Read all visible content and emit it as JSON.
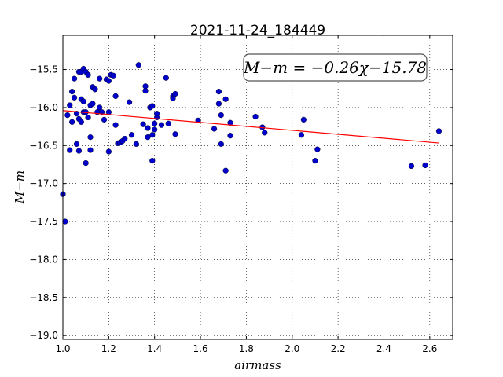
{
  "chart_data": {
    "type": "scatter",
    "title": "2021-11-24_184449",
    "xlabel": "airmass",
    "ylabel": "M−m",
    "xlim": [
      1.0,
      2.7
    ],
    "ylim": [
      -19.05,
      -15.05
    ],
    "y_inverted": true,
    "grid": true,
    "x_ticks": [
      1.0,
      1.2,
      1.4,
      1.6,
      1.8,
      2.0,
      2.2,
      2.4,
      2.6
    ],
    "x_tick_labels": [
      "1.0",
      "1.2",
      "1.4",
      "1.6",
      "1.8",
      "2.0",
      "2.2",
      "2.4",
      "2.6"
    ],
    "y_ticks": [
      -15.5,
      -16.0,
      -16.5,
      -17.0,
      -17.5,
      -18.0,
      -18.5,
      -19.0
    ],
    "y_tick_labels": [
      "−15.5",
      "−16.0",
      "−16.5",
      "−17.0",
      "−17.5",
      "−18.0",
      "−18.5",
      "−19.0"
    ],
    "annotation": "M−m = −0.26χ−15.78",
    "fit": {
      "slope": -0.26,
      "intercept": -15.78,
      "x_range": [
        1.0,
        2.64
      ],
      "color": "#ff0000"
    },
    "marker_color": "#0000cc",
    "series": [
      {
        "points": [
          [
            1.0,
            -17.14
          ],
          [
            1.01,
            -17.5
          ],
          [
            1.02,
            -16.1
          ],
          [
            1.03,
            -16.56
          ],
          [
            1.03,
            -15.97
          ],
          [
            1.04,
            -15.79
          ],
          [
            1.04,
            -16.19
          ],
          [
            1.05,
            -15.87
          ],
          [
            1.05,
            -15.62
          ],
          [
            1.06,
            -16.48
          ],
          [
            1.06,
            -16.08
          ],
          [
            1.07,
            -16.57
          ],
          [
            1.07,
            -16.15
          ],
          [
            1.07,
            -15.53
          ],
          [
            1.08,
            -16.19
          ],
          [
            1.08,
            -15.89
          ],
          [
            1.08,
            -15.53
          ],
          [
            1.09,
            -15.92
          ],
          [
            1.09,
            -16.06
          ],
          [
            1.09,
            -15.49
          ],
          [
            1.1,
            -15.53
          ],
          [
            1.1,
            -16.06
          ],
          [
            1.1,
            -16.73
          ],
          [
            1.11,
            -15.57
          ],
          [
            1.11,
            -16.13
          ],
          [
            1.12,
            -15.97
          ],
          [
            1.12,
            -16.39
          ],
          [
            1.12,
            -16.56
          ],
          [
            1.13,
            -15.95
          ],
          [
            1.13,
            -15.73
          ],
          [
            1.14,
            -15.76
          ],
          [
            1.14,
            -15.76
          ],
          [
            1.15,
            -16.06
          ],
          [
            1.16,
            -16.0
          ],
          [
            1.16,
            -15.62
          ],
          [
            1.17,
            -16.06
          ],
          [
            1.18,
            -16.16
          ],
          [
            1.19,
            -15.63
          ],
          [
            1.2,
            -15.65
          ],
          [
            1.2,
            -16.06
          ],
          [
            1.2,
            -16.58
          ],
          [
            1.21,
            -15.57
          ],
          [
            1.22,
            -15.58
          ],
          [
            1.23,
            -15.85
          ],
          [
            1.23,
            -16.23
          ],
          [
            1.24,
            -16.47
          ],
          [
            1.25,
            -16.46
          ],
          [
            1.26,
            -16.44
          ],
          [
            1.27,
            -16.41
          ],
          [
            1.29,
            -15.93
          ],
          [
            1.3,
            -16.36
          ],
          [
            1.32,
            -16.48
          ],
          [
            1.33,
            -15.44
          ],
          [
            1.35,
            -16.22
          ],
          [
            1.36,
            -15.72
          ],
          [
            1.36,
            -15.78
          ],
          [
            1.37,
            -16.39
          ],
          [
            1.37,
            -16.27
          ],
          [
            1.38,
            -16.0
          ],
          [
            1.39,
            -16.36
          ],
          [
            1.39,
            -15.98
          ],
          [
            1.39,
            -16.7
          ],
          [
            1.4,
            -16.21
          ],
          [
            1.4,
            -16.29
          ],
          [
            1.41,
            -16.13
          ],
          [
            1.41,
            -16.08
          ],
          [
            1.43,
            -16.23
          ],
          [
            1.45,
            -15.61
          ],
          [
            1.46,
            -16.21
          ],
          [
            1.48,
            -15.85
          ],
          [
            1.48,
            -15.88
          ],
          [
            1.49,
            -15.82
          ],
          [
            1.49,
            -16.35
          ],
          [
            1.59,
            -16.17
          ],
          [
            1.66,
            -16.28
          ],
          [
            1.68,
            -15.95
          ],
          [
            1.68,
            -15.79
          ],
          [
            1.69,
            -16.1
          ],
          [
            1.69,
            -16.48
          ],
          [
            1.71,
            -16.83
          ],
          [
            1.71,
            -15.89
          ],
          [
            1.73,
            -16.37
          ],
          [
            1.73,
            -16.2
          ],
          [
            1.84,
            -16.12
          ],
          [
            1.87,
            -16.26
          ],
          [
            1.88,
            -16.33
          ],
          [
            2.04,
            -16.36
          ],
          [
            2.05,
            -16.16
          ],
          [
            2.1,
            -16.7
          ],
          [
            2.11,
            -16.55
          ],
          [
            2.52,
            -16.77
          ],
          [
            2.58,
            -16.76
          ],
          [
            2.64,
            -16.31
          ]
        ]
      }
    ]
  }
}
